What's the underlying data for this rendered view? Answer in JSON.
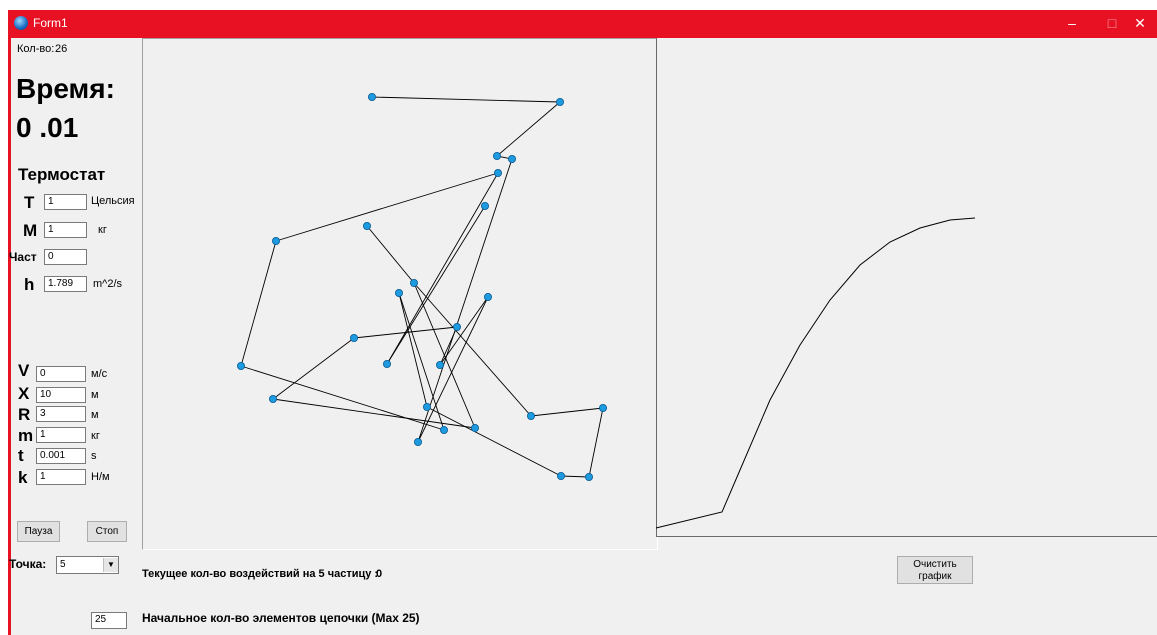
{
  "window": {
    "title": "Form1",
    "controls": {
      "minimize": "–",
      "maximize": "□",
      "close": "✕"
    },
    "titlebar_color": "#e81123"
  },
  "stats": {
    "count_label": "Кол-во:",
    "count_value": "26",
    "time_label": "Время:",
    "time_value": "0 .01"
  },
  "thermostat": {
    "heading": "Термостат",
    "fields": [
      {
        "name": "T",
        "value": "1",
        "unit": "Цельсия"
      },
      {
        "name": "M",
        "value": "1",
        "unit": "кг"
      },
      {
        "name": "Част",
        "value": "0",
        "unit": ""
      },
      {
        "name": "h",
        "value": "1.789",
        "unit": "m^2/s"
      }
    ]
  },
  "params": [
    {
      "name": "V",
      "value": "0",
      "unit": "м/с"
    },
    {
      "name": "X",
      "value": "10",
      "unit": "м"
    },
    {
      "name": "R",
      "value": "3",
      "unit": "м"
    },
    {
      "name": "m",
      "value": "1",
      "unit": "кг"
    },
    {
      "name": "t",
      "value": "0.001",
      "unit": "s"
    },
    {
      "name": "k",
      "value": "1",
      "unit": "Н/м"
    }
  ],
  "buttons": {
    "pause": "Пауза",
    "stop": "Стоп",
    "clear_graph_line1": "Очистить",
    "clear_graph_line2": "график"
  },
  "point_select": {
    "label": "Точка:",
    "selected": "5",
    "arrow": "▼"
  },
  "status": {
    "interactions_text": "Текущее кол-во воздействий на 5 частицу :",
    "interactions_value": "0",
    "chain_count_value": "25",
    "chain_count_label": "Начальное кол-во элементов цепочки (Max 25)"
  },
  "simulation": {
    "chain_order_points": [
      [
        372,
        97
      ],
      [
        560,
        102
      ],
      [
        497,
        156
      ],
      [
        512,
        159
      ],
      [
        418,
        442
      ],
      [
        488,
        297
      ],
      [
        440,
        365
      ],
      [
        457,
        327
      ],
      [
        354,
        338
      ],
      [
        273,
        399
      ],
      [
        475,
        428
      ],
      [
        414,
        283
      ],
      [
        531,
        416
      ],
      [
        603,
        408
      ],
      [
        589,
        477
      ],
      [
        561,
        476
      ],
      [
        427,
        407
      ],
      [
        399,
        293
      ],
      [
        444,
        430
      ],
      [
        241,
        366
      ],
      [
        276,
        241
      ],
      [
        498,
        173
      ],
      [
        387,
        364
      ],
      [
        485,
        206
      ]
    ],
    "extra_points": [
      [
        367,
        226
      ]
    ],
    "node_color": "#1e9be0"
  },
  "graph": {
    "curve_points": [
      [
        656,
        528
      ],
      [
        722,
        512
      ],
      [
        740,
        470
      ],
      [
        770,
        400
      ],
      [
        800,
        345
      ],
      [
        830,
        300
      ],
      [
        860,
        265
      ],
      [
        890,
        242
      ],
      [
        920,
        228
      ],
      [
        950,
        220
      ],
      [
        975,
        218
      ]
    ]
  }
}
